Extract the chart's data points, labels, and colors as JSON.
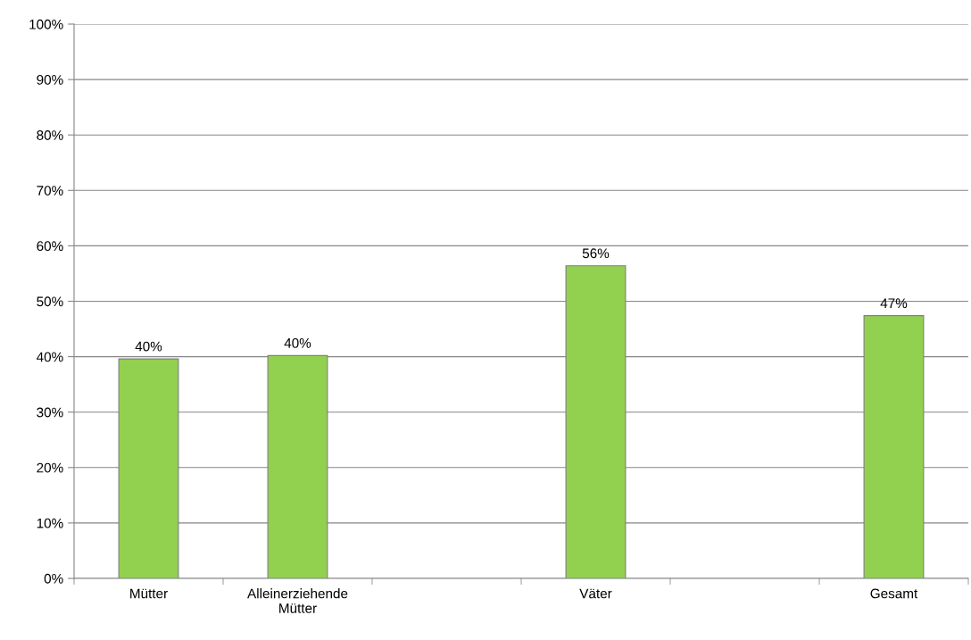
{
  "chart_data": {
    "type": "bar",
    "categories": [
      "Mütter",
      "Alleinerziehende\nMütter",
      null,
      "Väter",
      null,
      "Gesamt"
    ],
    "values": [
      39.6,
      40.2,
      null,
      56.4,
      null,
      47.4
    ],
    "value_labels": [
      "40%",
      "40%",
      null,
      "56%",
      null,
      "47%"
    ],
    "color": "#92d050",
    "ylim": [
      0,
      100
    ],
    "yticks": [
      {
        "value": 0,
        "label": "0%"
      },
      {
        "value": 10,
        "label": "10%"
      },
      {
        "value": 20,
        "label": "20%"
      },
      {
        "value": 30,
        "label": "30%"
      },
      {
        "value": 40,
        "label": "40%"
      },
      {
        "value": 50,
        "label": "50%"
      },
      {
        "value": 60,
        "label": "60%"
      },
      {
        "value": 70,
        "label": "70%"
      },
      {
        "value": 80,
        "label": "80%"
      },
      {
        "value": 90,
        "label": "90%"
      },
      {
        "value": 100,
        "label": "100%"
      }
    ],
    "grid": "y",
    "legend": false
  }
}
